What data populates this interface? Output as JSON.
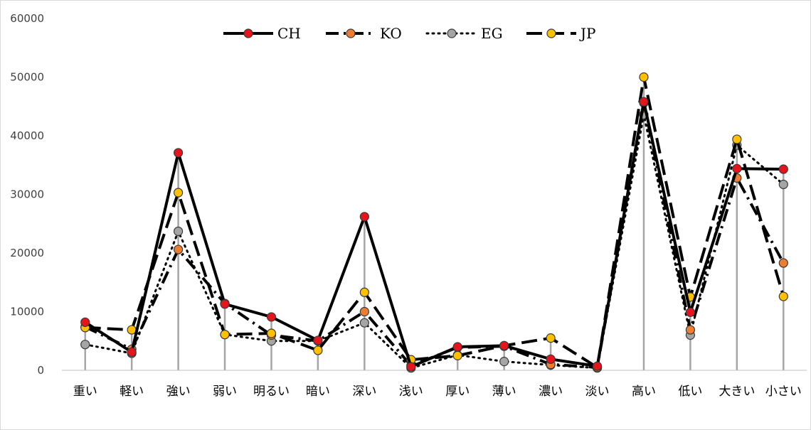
{
  "chart_data": {
    "type": "line",
    "ylim": [
      0,
      60000
    ],
    "y_ticks": [
      "0",
      "10000",
      "20000",
      "30000",
      "40000",
      "50000",
      "60000"
    ],
    "grid": "vertical drop lines at each category",
    "legend_placement": "top-center",
    "categories": [
      "重い",
      "軽い",
      "強い",
      "弱い",
      "明るい",
      "暗い",
      "深い",
      "浅い",
      "厚い",
      "薄い",
      "濃い",
      "淡い",
      "高い",
      "低い",
      "大きい",
      "小さい"
    ],
    "series": [
      {
        "name": "CH",
        "values": [
          8200,
          3100,
          37100,
          11300,
          9100,
          5100,
          26200,
          600,
          4000,
          4200,
          1900,
          700,
          45800,
          9900,
          34400,
          34300
        ],
        "line_color": "#000000",
        "marker_color": "#e8141c",
        "dash": "solid"
      },
      {
        "name": "KO",
        "values": [
          7400,
          3600,
          20600,
          11400,
          6000,
          5000,
          10000,
          800,
          3900,
          4100,
          1000,
          500,
          45600,
          6900,
          32800,
          18300
        ],
        "line_color": "#000000",
        "marker_color": "#ed7d31",
        "dash": "dash-dot"
      },
      {
        "name": "EG",
        "values": [
          4400,
          2900,
          23700,
          6100,
          5000,
          5000,
          8100,
          400,
          2600,
          1500,
          900,
          400,
          43600,
          6000,
          38400,
          31700
        ],
        "line_color": "#000000",
        "marker_color": "#a5a5a5",
        "dash": "dot"
      },
      {
        "name": "JP",
        "values": [
          7300,
          6900,
          30300,
          6100,
          6300,
          3400,
          13300,
          1800,
          2500,
          4200,
          5500,
          500,
          50000,
          12500,
          39400,
          12600
        ],
        "line_color": "#000000",
        "marker_color": "#ffc000",
        "dash": "long-dash"
      }
    ]
  }
}
